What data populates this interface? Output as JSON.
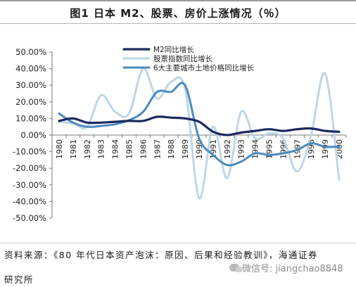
{
  "figure": {
    "title": "图1   日本 M2、股票、房价上涨情况（％）"
  },
  "source": {
    "line1": "资料来源：《80 年代日本资产泡沫：原因、后果和经验教训》，海通证券",
    "line2": "研究所"
  },
  "watermark": {
    "label": "微信号: jiangchao8848"
  },
  "chart_data": {
    "type": "line",
    "x": [
      1980,
      1981,
      1982,
      1983,
      1984,
      1985,
      1986,
      1987,
      1988,
      1989,
      1990,
      1991,
      1992,
      1993,
      1994,
      1995,
      1996,
      1997,
      1998,
      1999,
      2000
    ],
    "y_ticks": [
      "50.00%",
      "40.00%",
      "30.00%",
      "20.00%",
      "10.00%",
      "0.00%",
      "-10.00%",
      "-20.00%",
      "-30.00%",
      "-40.00%",
      "-50.00%"
    ],
    "ylim": [
      -50,
      50
    ],
    "grid": false,
    "legend_position": "top-center",
    "series": [
      {
        "name": "M2同比增长",
        "color": "#1b2a5c",
        "width": 3.2,
        "values": [
          8.5,
          10,
          7.5,
          7.5,
          8,
          8.5,
          8.5,
          11,
          10.5,
          10,
          8,
          2,
          0,
          1.5,
          2.5,
          3.5,
          2.5,
          3.5,
          4,
          2.5,
          2
        ]
      },
      {
        "name": "股票指数同比增长",
        "color": "#bfd6e6",
        "width": 3,
        "values": [
          8,
          7,
          5,
          24,
          14,
          13,
          40,
          22,
          32,
          28,
          -38,
          5,
          -26,
          14,
          -2,
          1,
          -2,
          -22,
          0,
          37,
          -27
        ]
      },
      {
        "name": "6大主要城市土地价格同比增长",
        "color": "#4b8bbe",
        "width": 3,
        "values": [
          13,
          7.5,
          5,
          5.5,
          6.5,
          9,
          14,
          26,
          26,
          30,
          -2,
          -12,
          -18,
          -16,
          -11,
          -12,
          -11,
          -9,
          -5,
          -7,
          -7
        ]
      }
    ]
  }
}
